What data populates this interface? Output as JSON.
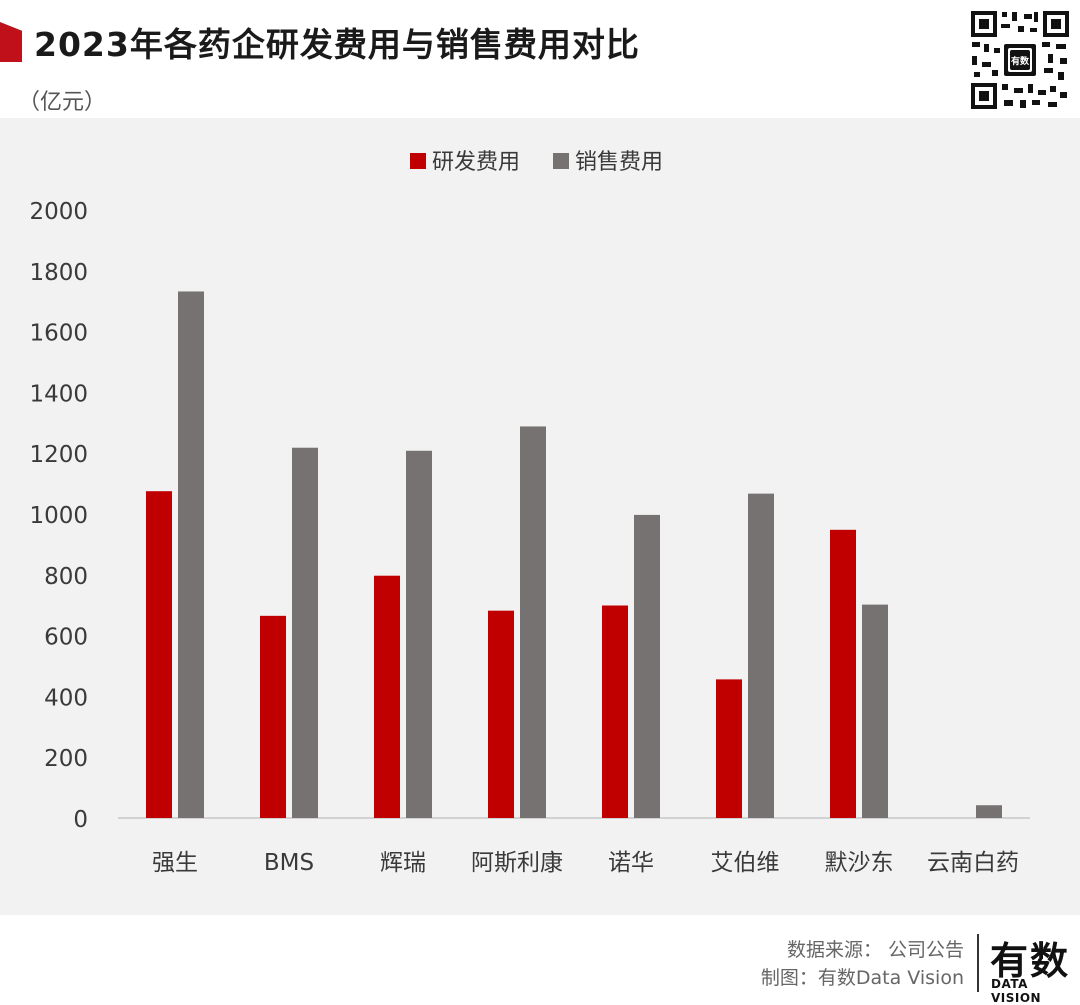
{
  "header": {
    "title": "2023年各药企研发费用与销售费用对比",
    "unit": "（亿元）",
    "accent_color": "#c0101a"
  },
  "qr_code": {
    "icon": "qr-code-icon",
    "center_text": "有数"
  },
  "footer": {
    "source": "数据来源： 公司公告",
    "made_by": "制图：有数Data Vision",
    "brand_cn": "有数",
    "brand_en": "DATA VISION"
  },
  "chart_data": {
    "type": "bar",
    "categories": [
      "强生",
      "BMS",
      "辉瑞",
      "阿斯利康",
      "诺华",
      "艾伯维",
      "默沙东",
      "云南白药"
    ],
    "series": [
      {
        "name": "研发费用",
        "color": "#c00000",
        "values": [
          1075,
          665,
          797,
          682,
          699,
          456,
          948,
          0
        ]
      },
      {
        "name": "销售费用",
        "color": "#777272",
        "values": [
          1732,
          1218,
          1208,
          1288,
          997,
          1067,
          702,
          42
        ]
      }
    ],
    "ylim": [
      0,
      2000
    ],
    "yticks": [
      "0",
      "200",
      "400",
      "600",
      "800",
      "1000",
      "1200",
      "1400",
      "1600",
      "1800",
      "2000"
    ],
    "legend_position": "top-center",
    "grid": false
  }
}
